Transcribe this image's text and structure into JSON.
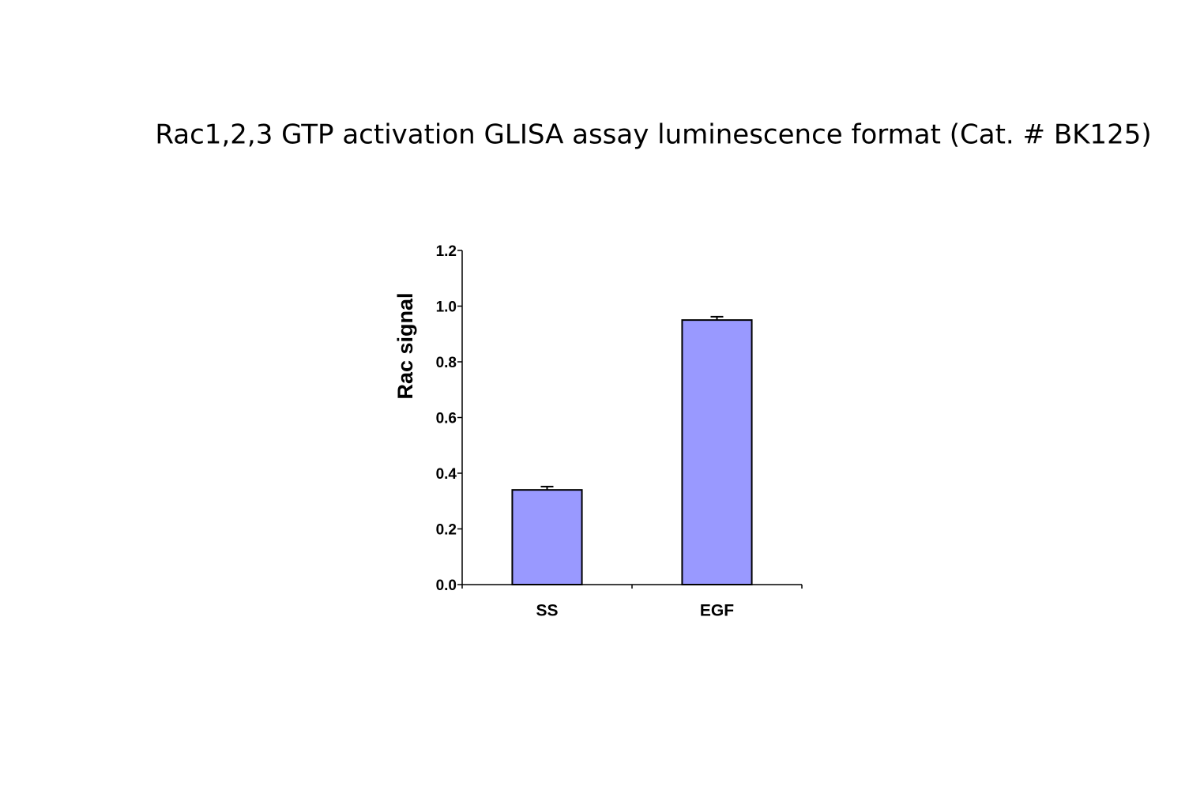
{
  "chart_data": {
    "type": "bar",
    "title": "Rac1,2,3 GTP activation GLISA assay luminescence format (Cat. # BK125)",
    "ylabel": "Rac signal",
    "categories": [
      "SS",
      "EGF"
    ],
    "values": [
      0.34,
      0.95
    ],
    "errors": [
      0.012,
      0.012
    ],
    "color": "#9999ff",
    "ylim": [
      0,
      1.2
    ],
    "yticks": [
      {
        "value": 0,
        "label": "0.0"
      },
      0.2,
      0.4,
      0.6,
      0.8,
      {
        "value": 1,
        "label": "1.0"
      },
      1.2
    ],
    "grid": false
  }
}
